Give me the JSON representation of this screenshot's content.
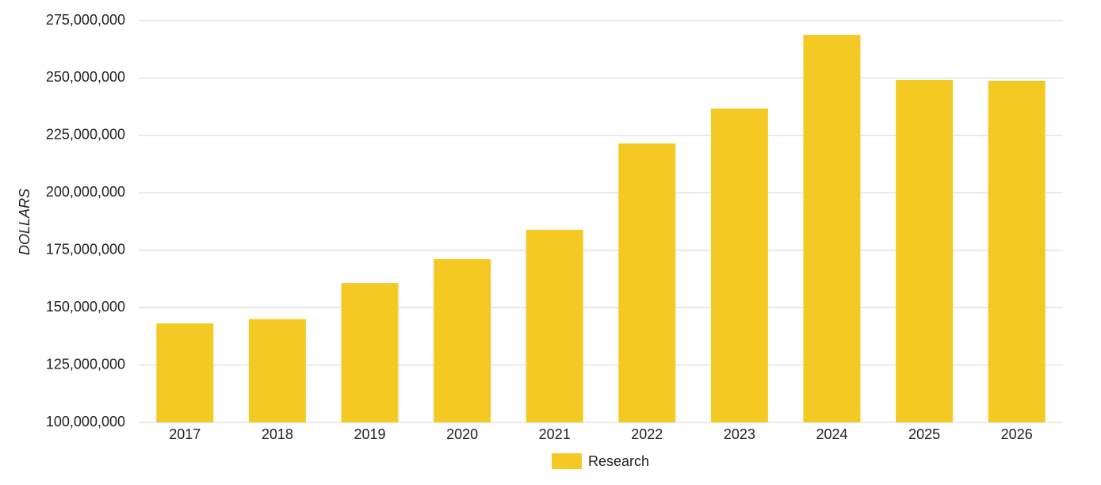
{
  "chart_data": {
    "type": "bar",
    "y_axis_label": "DOLLARS",
    "categories": [
      "2017",
      "2018",
      "2019",
      "2020",
      "2021",
      "2022",
      "2023",
      "2024",
      "2025",
      "2026"
    ],
    "series": [
      {
        "name": "Research",
        "color": "#f5c924",
        "values": [
          143100000,
          145000000,
          160700000,
          171100000,
          183900000,
          221500000,
          236700000,
          268800000,
          249100000,
          248800000
        ]
      }
    ],
    "ylim": [
      100000000,
      275000000
    ],
    "yticks": [
      {
        "value": 100000000,
        "label": "100,000,000"
      },
      {
        "value": 125000000,
        "label": "125,000,000"
      },
      {
        "value": 150000000,
        "label": "150,000,000"
      },
      {
        "value": 175000000,
        "label": "175,000,000"
      },
      {
        "value": 200000000,
        "label": "200,000,000"
      },
      {
        "value": 225000000,
        "label": "225,000,000"
      },
      {
        "value": 250000000,
        "label": "250,000,000"
      },
      {
        "value": 275000000,
        "label": "275,000,000"
      }
    ],
    "grid": true,
    "legend": "bottom"
  }
}
